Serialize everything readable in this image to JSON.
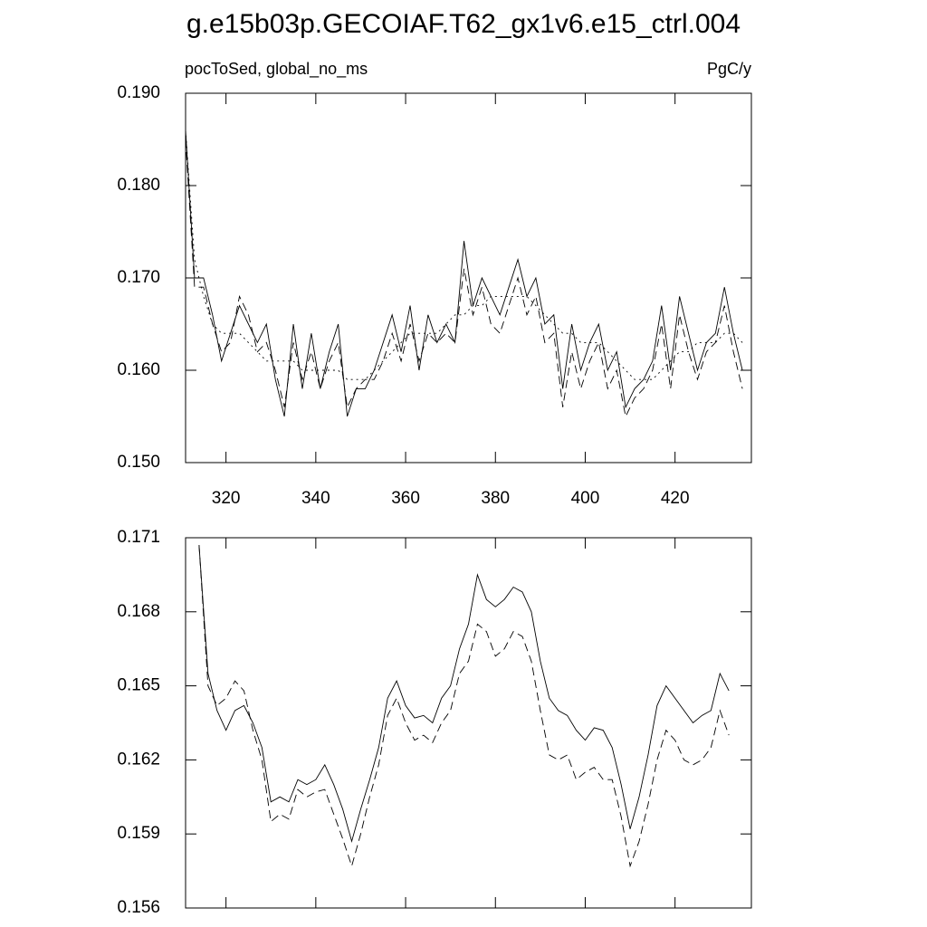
{
  "chart_data": [
    {
      "type": "line",
      "title": "g.e15b03p.GECOIAF.T62_gx1v6.e15_ctrl.004",
      "subtitle": "pocToSed, global_no_ms",
      "units": "PgC/y",
      "x": [
        311,
        313,
        315,
        317,
        319,
        321,
        323,
        325,
        327,
        329,
        331,
        333,
        335,
        337,
        339,
        341,
        343,
        345,
        347,
        349,
        351,
        353,
        355,
        357,
        359,
        361,
        363,
        365,
        367,
        369,
        371,
        373,
        375,
        377,
        379,
        381,
        383,
        385,
        387,
        389,
        391,
        393,
        395,
        397,
        399,
        401,
        403,
        405,
        407,
        409,
        411,
        413,
        415,
        417,
        419,
        421,
        423,
        425,
        427,
        429,
        431,
        433,
        435
      ],
      "xlim": [
        311,
        437
      ],
      "xticks": [
        320,
        340,
        360,
        380,
        400,
        420
      ],
      "xtick_labels": true,
      "ylim": [
        0.15,
        0.19
      ],
      "yticks": [
        {
          "value": 0.15,
          "label": "0.150"
        },
        {
          "value": 0.16,
          "label": "0.160"
        },
        {
          "value": 0.17,
          "label": "0.170"
        },
        {
          "value": 0.18,
          "label": "0.180"
        },
        {
          "value": 0.19,
          "label": "0.190"
        }
      ],
      "series": [
        {
          "color": "#000000",
          "dash": "solid",
          "values": [
            0.186,
            0.17,
            0.17,
            0.166,
            0.161,
            0.164,
            0.167,
            0.165,
            0.163,
            0.165,
            0.159,
            0.155,
            0.165,
            0.158,
            0.164,
            0.158,
            0.162,
            0.165,
            0.155,
            0.158,
            0.158,
            0.16,
            0.163,
            0.166,
            0.162,
            0.167,
            0.16,
            0.166,
            0.163,
            0.165,
            0.163,
            0.174,
            0.167,
            0.17,
            0.168,
            0.166,
            0.169,
            0.172,
            0.168,
            0.17,
            0.165,
            0.166,
            0.158,
            0.165,
            0.16,
            0.163,
            0.165,
            0.16,
            0.162,
            0.156,
            0.158,
            0.159,
            0.161,
            0.167,
            0.16,
            0.168,
            0.164,
            0.16,
            0.163,
            0.164,
            0.169,
            0.164,
            0.16
          ]
        },
        {
          "color": "#000000",
          "dash": "dashed",
          "values": [
            0.185,
            0.169,
            0.169,
            0.165,
            0.162,
            0.163,
            0.168,
            0.166,
            0.162,
            0.163,
            0.16,
            0.156,
            0.163,
            0.159,
            0.162,
            0.158,
            0.161,
            0.163,
            0.156,
            0.158,
            0.159,
            0.159,
            0.161,
            0.164,
            0.161,
            0.165,
            0.161,
            0.164,
            0.163,
            0.164,
            0.163,
            0.171,
            0.166,
            0.169,
            0.165,
            0.164,
            0.167,
            0.17,
            0.166,
            0.168,
            0.163,
            0.164,
            0.156,
            0.162,
            0.158,
            0.161,
            0.163,
            0.158,
            0.16,
            0.155,
            0.157,
            0.158,
            0.16,
            0.165,
            0.158,
            0.166,
            0.162,
            0.159,
            0.162,
            0.163,
            0.167,
            0.162,
            0.158
          ]
        },
        {
          "color": "#000000",
          "dash": "dotted",
          "values": [
            0.186,
            0.172,
            0.168,
            0.165,
            0.164,
            0.164,
            0.164,
            0.163,
            0.162,
            0.161,
            0.161,
            0.161,
            0.161,
            0.16,
            0.16,
            0.16,
            0.16,
            0.16,
            0.159,
            0.159,
            0.159,
            0.16,
            0.161,
            0.162,
            0.163,
            0.164,
            0.164,
            0.164,
            0.164,
            0.165,
            0.166,
            0.166,
            0.167,
            0.167,
            0.168,
            0.168,
            0.168,
            0.168,
            0.168,
            0.167,
            0.166,
            0.165,
            0.164,
            0.164,
            0.163,
            0.163,
            0.163,
            0.162,
            0.161,
            0.16,
            0.159,
            0.159,
            0.159,
            0.16,
            0.161,
            0.162,
            0.162,
            0.163,
            0.163,
            0.163,
            0.164,
            0.164,
            0.163
          ]
        }
      ]
    },
    {
      "type": "line",
      "x": [
        314,
        316,
        318,
        320,
        322,
        324,
        326,
        328,
        330,
        332,
        334,
        336,
        338,
        340,
        342,
        344,
        346,
        348,
        350,
        352,
        354,
        356,
        358,
        360,
        362,
        364,
        366,
        368,
        370,
        372,
        374,
        376,
        378,
        380,
        382,
        384,
        386,
        388,
        390,
        392,
        394,
        396,
        398,
        400,
        402,
        404,
        406,
        408,
        410,
        412,
        414,
        416,
        418,
        420,
        422,
        424,
        426,
        428,
        430,
        432
      ],
      "xlim": [
        311,
        437
      ],
      "xticks": [
        320,
        340,
        360,
        380,
        400,
        420
      ],
      "xtick_labels": false,
      "ylim": [
        0.156,
        0.171
      ],
      "yticks": [
        0.156,
        0.159,
        0.162,
        0.165,
        0.168,
        0.171
      ],
      "series": [
        {
          "color": "#000000",
          "dash": "solid",
          "values": [
            0.1707,
            0.1655,
            0.164,
            0.1632,
            0.164,
            0.1642,
            0.1635,
            0.1625,
            0.1603,
            0.1605,
            0.1603,
            0.1612,
            0.161,
            0.1612,
            0.1618,
            0.161,
            0.16,
            0.1587,
            0.16,
            0.1612,
            0.1625,
            0.1645,
            0.1652,
            0.1642,
            0.1637,
            0.1638,
            0.1635,
            0.1645,
            0.165,
            0.1665,
            0.1675,
            0.1695,
            0.1685,
            0.1682,
            0.1685,
            0.169,
            0.1688,
            0.168,
            0.166,
            0.1645,
            0.164,
            0.1638,
            0.1632,
            0.1628,
            0.1633,
            0.1632,
            0.1625,
            0.161,
            0.1592,
            0.1605,
            0.1622,
            0.1642,
            0.165,
            0.1645,
            0.164,
            0.1635,
            0.1638,
            0.164,
            0.1655,
            0.1648
          ]
        },
        {
          "color": "#000000",
          "dash": "dashed",
          "values": [
            0.1707,
            0.165,
            0.1642,
            0.1645,
            0.1652,
            0.1648,
            0.1632,
            0.162,
            0.1595,
            0.1598,
            0.1596,
            0.1608,
            0.1605,
            0.1607,
            0.1608,
            0.1598,
            0.1588,
            0.1577,
            0.159,
            0.1605,
            0.1618,
            0.1638,
            0.1645,
            0.1635,
            0.1628,
            0.163,
            0.1627,
            0.1635,
            0.164,
            0.1655,
            0.166,
            0.1675,
            0.1672,
            0.1662,
            0.1665,
            0.1672,
            0.167,
            0.166,
            0.164,
            0.1622,
            0.162,
            0.1622,
            0.1612,
            0.1615,
            0.1617,
            0.1612,
            0.1612,
            0.1597,
            0.1577,
            0.1587,
            0.1602,
            0.162,
            0.1632,
            0.1628,
            0.162,
            0.1618,
            0.162,
            0.1625,
            0.164,
            0.163
          ]
        }
      ]
    }
  ]
}
